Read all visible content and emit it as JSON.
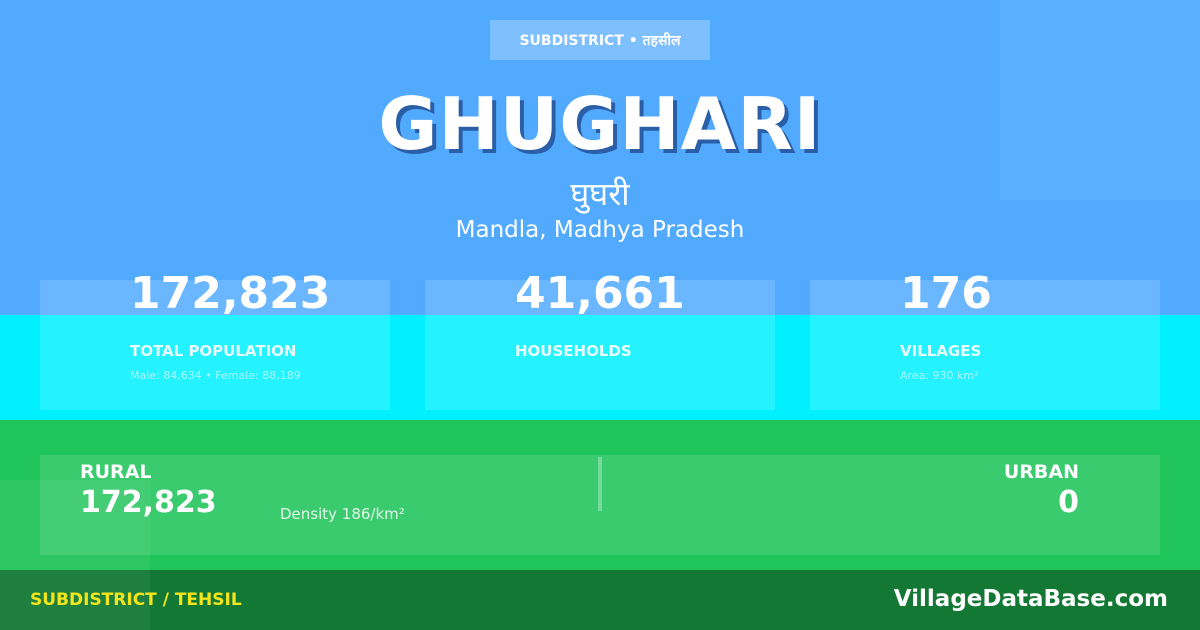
{
  "colors": {
    "top": "#52aaff",
    "middle": "#00f0ff",
    "lower": "#1fc45a",
    "footer": "#127834",
    "footer_label": "#f3e51c"
  },
  "header": {
    "badge": "SUBDISTRICT • तहसील",
    "title": "GHUGHARI",
    "title_hindi": "घुघरी",
    "location": "Mandla, Madhya Pradesh"
  },
  "stats": [
    {
      "value": "172,823",
      "label": "TOTAL POPULATION",
      "sub": "Male: 84,634 • Female: 88,189"
    },
    {
      "value": "41,661",
      "label": "HOUSEHOLDS",
      "sub": ""
    },
    {
      "value": "176",
      "label": "VILLAGES",
      "sub": "Area: 930 km²"
    }
  ],
  "breakdown": {
    "rural_label": "RURAL",
    "rural_value": "172,823",
    "density": "Density 186/km²",
    "urban_label": "URBAN",
    "urban_value": "0"
  },
  "footer": {
    "category": "SUBDISTRICT / TEHSIL",
    "site": "VillageDataBase.com"
  }
}
